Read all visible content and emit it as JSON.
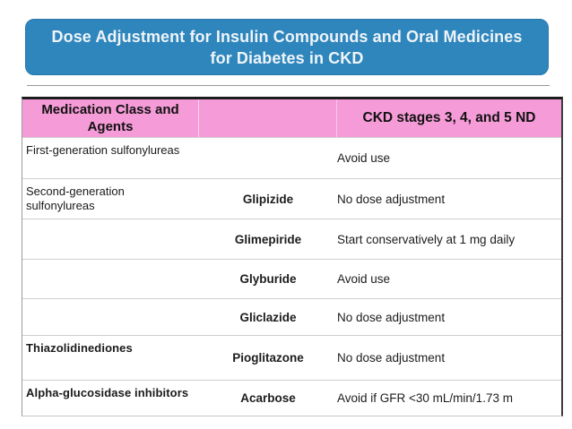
{
  "banner": {
    "title_line1": "Dose Adjustment for Insulin Compounds and Oral Medicines",
    "title_line2": "for Diabetes in CKD",
    "bg_color": "#2E86BD",
    "text_color": "#EFF4F8"
  },
  "table": {
    "header": {
      "medication_class": "Medication Class and\nAgents",
      "agents_column": "",
      "ckd_stages": "CKD stages 3, 4, and 5 ND",
      "bg_color": "#F59BD7"
    },
    "rows": [
      {
        "medication_class": "First-generation sulfonylureas",
        "agent": "",
        "recommendation": "Avoid use"
      },
      {
        "medication_class": "Second-generation\nsulfonylureas",
        "agent": "Glipizide",
        "recommendation": "No dose adjustment"
      },
      {
        "medication_class": "",
        "agent": "Glimepiride",
        "recommendation": "Start conservatively at 1 mg daily"
      },
      {
        "medication_class": "",
        "agent": "Glyburide",
        "recommendation": "Avoid use"
      },
      {
        "medication_class": "",
        "agent": "Gliclazide",
        "recommendation": "No dose adjustment"
      },
      {
        "medication_class": "Thiazolidinediones",
        "agent": "Pioglitazone",
        "recommendation": "No dose adjustment"
      },
      {
        "medication_class": "Alpha-glucosidase inhibitors",
        "agent": "Acarbose",
        "recommendation": "Avoid if GFR <30 mL/min/1.73 m"
      }
    ]
  }
}
